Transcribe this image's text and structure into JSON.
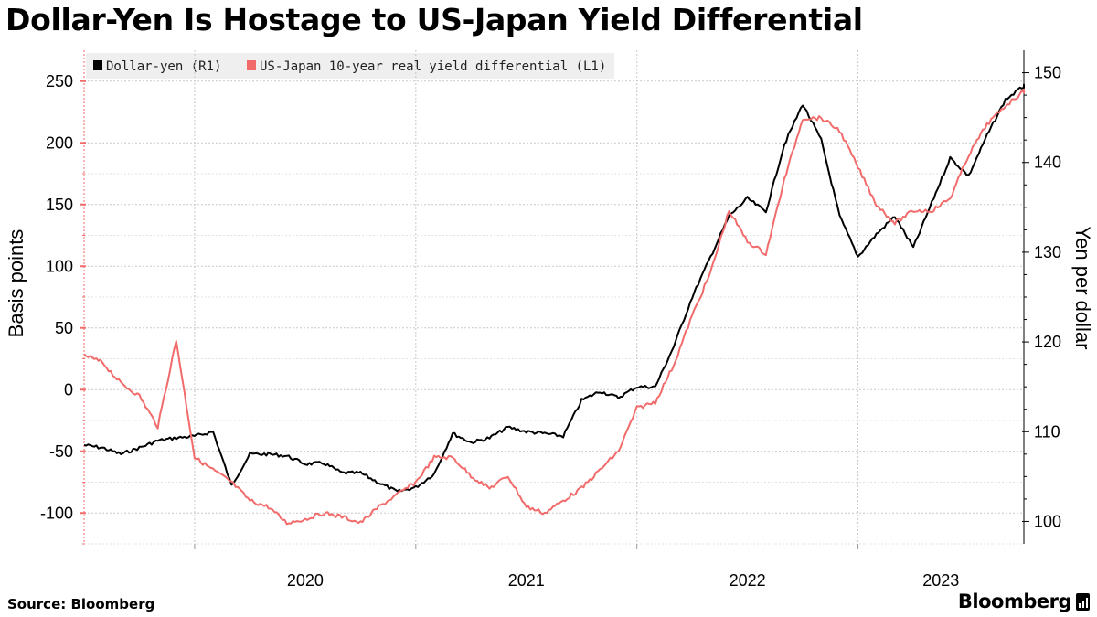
{
  "title": "Dollar-Yen Is Hostage to US-Japan Yield Differential",
  "footer": {
    "source": "Source: Bloomberg",
    "brand": "Bloomberg",
    "brand_icon": "bloomberg-terminal-icon"
  },
  "chart_data": {
    "type": "line",
    "title": "Dollar-Yen Is Hostage to US-Japan Yield Differential",
    "x_tick_labels": [
      "2020",
      "2021",
      "2022",
      "2023"
    ],
    "x_range": [
      "2019-07",
      "2023-10"
    ],
    "left_axis": {
      "label": "Basis points",
      "ylim": [
        -125,
        275
      ],
      "ticks": [
        250,
        200,
        150,
        100,
        50,
        0,
        -50,
        -100
      ],
      "tick_color": "#f26b6b"
    },
    "right_axis": {
      "label": "Yen per dollar",
      "ylim": [
        97.5,
        152.5
      ],
      "ticks": [
        150,
        140,
        130,
        120,
        110,
        100
      ]
    },
    "legend": {
      "placement": "top-left"
    },
    "grid": true,
    "series": [
      {
        "name": "Dollar-yen (R1)",
        "axis": "right",
        "color": "#000000",
        "x": [
          "2019-07",
          "2019-08",
          "2019-09",
          "2019-10",
          "2019-11",
          "2019-12",
          "2020-01",
          "2020-02",
          "2020-03",
          "2020-04",
          "2020-05",
          "2020-06",
          "2020-07",
          "2020-08",
          "2020-09",
          "2020-10",
          "2020-11",
          "2020-12",
          "2021-01",
          "2021-02",
          "2021-03",
          "2021-04",
          "2021-05",
          "2021-06",
          "2021-07",
          "2021-08",
          "2021-09",
          "2021-10",
          "2021-11",
          "2021-12",
          "2022-01",
          "2022-02",
          "2022-03",
          "2022-04",
          "2022-05",
          "2022-06",
          "2022-07",
          "2022-08",
          "2022-09",
          "2022-10",
          "2022-11",
          "2022-12",
          "2023-01",
          "2023-02",
          "2023-03",
          "2023-04",
          "2023-05",
          "2023-06",
          "2023-07",
          "2023-08",
          "2023-09",
          "2023-10"
        ],
        "values": [
          108.5,
          108.2,
          107.5,
          108.2,
          109.0,
          109.3,
          109.5,
          110.0,
          104.0,
          107.5,
          107.5,
          107.3,
          106.4,
          106.5,
          105.4,
          105.4,
          104.3,
          103.3,
          103.8,
          105.3,
          109.8,
          108.8,
          109.3,
          110.5,
          110.0,
          109.8,
          109.5,
          113.5,
          114.5,
          113.8,
          115.0,
          115.0,
          119.5,
          125.0,
          129.5,
          134.0,
          136.0,
          134.5,
          142.0,
          146.5,
          142.5,
          134.0,
          129.5,
          132.0,
          134.0,
          130.5,
          135.5,
          140.5,
          138.5,
          143.0,
          147.0,
          148.5
        ]
      },
      {
        "name": "US-Japan 10-year real yield differential (L1)",
        "axis": "left",
        "color": "#f26b6b",
        "x": [
          "2019-07",
          "2019-08",
          "2019-09",
          "2019-10",
          "2019-11",
          "2019-12",
          "2020-01",
          "2020-02",
          "2020-03",
          "2020-04",
          "2020-05",
          "2020-06",
          "2020-07",
          "2020-08",
          "2020-09",
          "2020-10",
          "2020-11",
          "2020-12",
          "2021-01",
          "2021-02",
          "2021-03",
          "2021-04",
          "2021-05",
          "2021-06",
          "2021-07",
          "2021-08",
          "2021-09",
          "2021-10",
          "2021-11",
          "2021-12",
          "2022-01",
          "2022-02",
          "2022-03",
          "2022-04",
          "2022-05",
          "2022-06",
          "2022-07",
          "2022-08",
          "2022-09",
          "2022-10",
          "2022-11",
          "2022-12",
          "2023-01",
          "2023-02",
          "2023-03",
          "2023-04",
          "2023-05",
          "2023-06",
          "2023-07",
          "2023-08",
          "2023-09",
          "2023-10"
        ],
        "values": [
          28,
          22,
          5,
          -5,
          -30,
          40,
          -55,
          -65,
          -75,
          -90,
          -95,
          -108,
          -105,
          -100,
          -103,
          -108,
          -95,
          -85,
          -75,
          -55,
          -55,
          -70,
          -80,
          -70,
          -95,
          -100,
          -90,
          -80,
          -65,
          -50,
          -15,
          -10,
          20,
          60,
          95,
          145,
          120,
          110,
          170,
          220,
          220,
          210,
          180,
          150,
          135,
          145,
          145,
          155,
          190,
          215,
          230,
          242
        ]
      }
    ]
  }
}
